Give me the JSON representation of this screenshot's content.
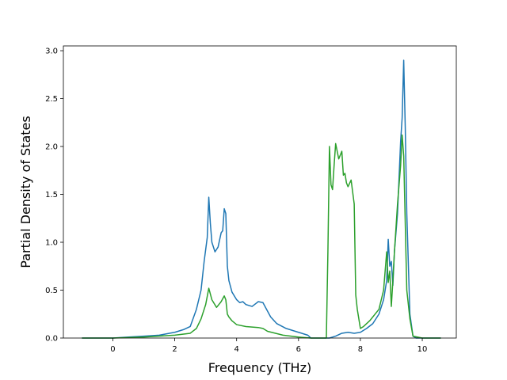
{
  "chart_data": {
    "type": "line",
    "title": "",
    "xlabel": "Frequency (THz)",
    "ylabel": "Partial Density of States",
    "xlim": [
      -1.6,
      11.1
    ],
    "ylim": [
      0,
      3.05
    ],
    "xticks": [
      0,
      2,
      4,
      6,
      8,
      10
    ],
    "yticks": [
      0.0,
      0.5,
      1.0,
      1.5,
      2.0,
      2.5,
      3.0
    ],
    "xtick_labels": [
      "0",
      "2",
      "4",
      "6",
      "8",
      "10"
    ],
    "ytick_labels": [
      "0.0",
      "0.5",
      "1.0",
      "1.5",
      "2.0",
      "2.5",
      "3.0"
    ],
    "grid": false,
    "legend": "none",
    "series": [
      {
        "color": "#1f77b4",
        "x": [
          -1.0,
          0.0,
          0.5,
          1.0,
          1.5,
          2.0,
          2.3,
          2.5,
          2.7,
          2.85,
          2.95,
          3.05,
          3.1,
          3.15,
          3.2,
          3.3,
          3.4,
          3.5,
          3.55,
          3.6,
          3.65,
          3.7,
          3.75,
          3.85,
          4.0,
          4.1,
          4.2,
          4.3,
          4.5,
          4.7,
          4.85,
          5.0,
          5.1,
          5.3,
          5.6,
          6.0,
          6.3,
          6.4,
          6.5,
          6.8,
          7.0,
          7.2,
          7.4,
          7.6,
          7.8,
          8.0,
          8.2,
          8.4,
          8.6,
          8.75,
          8.85,
          8.9,
          8.95,
          9.0,
          9.05,
          9.1,
          9.2,
          9.3,
          9.35,
          9.4,
          9.45,
          9.5,
          9.6,
          9.7,
          9.8,
          10.0,
          10.6
        ],
        "y": [
          0.0,
          0.0,
          0.01,
          0.02,
          0.03,
          0.06,
          0.09,
          0.12,
          0.3,
          0.5,
          0.8,
          1.05,
          1.47,
          1.2,
          1.0,
          0.9,
          0.95,
          1.1,
          1.12,
          1.35,
          1.3,
          0.75,
          0.6,
          0.48,
          0.4,
          0.37,
          0.38,
          0.35,
          0.33,
          0.38,
          0.37,
          0.28,
          0.22,
          0.15,
          0.1,
          0.06,
          0.03,
          0.0,
          0.0,
          0.0,
          0.0,
          0.02,
          0.05,
          0.06,
          0.05,
          0.06,
          0.1,
          0.15,
          0.25,
          0.4,
          0.6,
          1.03,
          0.75,
          0.8,
          0.55,
          0.9,
          1.3,
          2.05,
          2.3,
          2.9,
          2.2,
          1.3,
          0.25,
          0.02,
          0.0,
          0.0,
          0.0
        ]
      },
      {
        "color": "#2ca02c",
        "x": [
          -1.0,
          0.0,
          1.0,
          2.0,
          2.5,
          2.7,
          2.85,
          3.0,
          3.1,
          3.2,
          3.35,
          3.5,
          3.6,
          3.65,
          3.7,
          3.75,
          3.85,
          4.0,
          4.3,
          4.7,
          4.85,
          5.0,
          5.5,
          6.0,
          6.4,
          6.5,
          6.9,
          6.95,
          7.0,
          7.05,
          7.1,
          7.15,
          7.2,
          7.3,
          7.4,
          7.45,
          7.5,
          7.55,
          7.6,
          7.7,
          7.8,
          7.85,
          7.9,
          8.0,
          8.1,
          8.3,
          8.6,
          8.75,
          8.85,
          8.9,
          8.95,
          9.0,
          9.05,
          9.1,
          9.2,
          9.3,
          9.35,
          9.4,
          9.45,
          9.5,
          9.6,
          9.7,
          10.0,
          10.6
        ],
        "y": [
          0.0,
          0.0,
          0.01,
          0.03,
          0.05,
          0.1,
          0.2,
          0.35,
          0.52,
          0.4,
          0.32,
          0.38,
          0.44,
          0.4,
          0.25,
          0.22,
          0.18,
          0.14,
          0.12,
          0.11,
          0.1,
          0.07,
          0.03,
          0.01,
          0.0,
          0.0,
          0.0,
          0.9,
          2.0,
          1.6,
          1.55,
          1.8,
          2.03,
          1.87,
          1.95,
          1.7,
          1.72,
          1.62,
          1.58,
          1.65,
          1.4,
          0.45,
          0.3,
          0.1,
          0.12,
          0.18,
          0.3,
          0.5,
          0.9,
          0.58,
          0.7,
          0.33,
          0.6,
          0.9,
          1.4,
          1.8,
          2.12,
          1.9,
          1.2,
          0.5,
          0.2,
          0.02,
          0.0,
          0.0
        ]
      }
    ]
  }
}
